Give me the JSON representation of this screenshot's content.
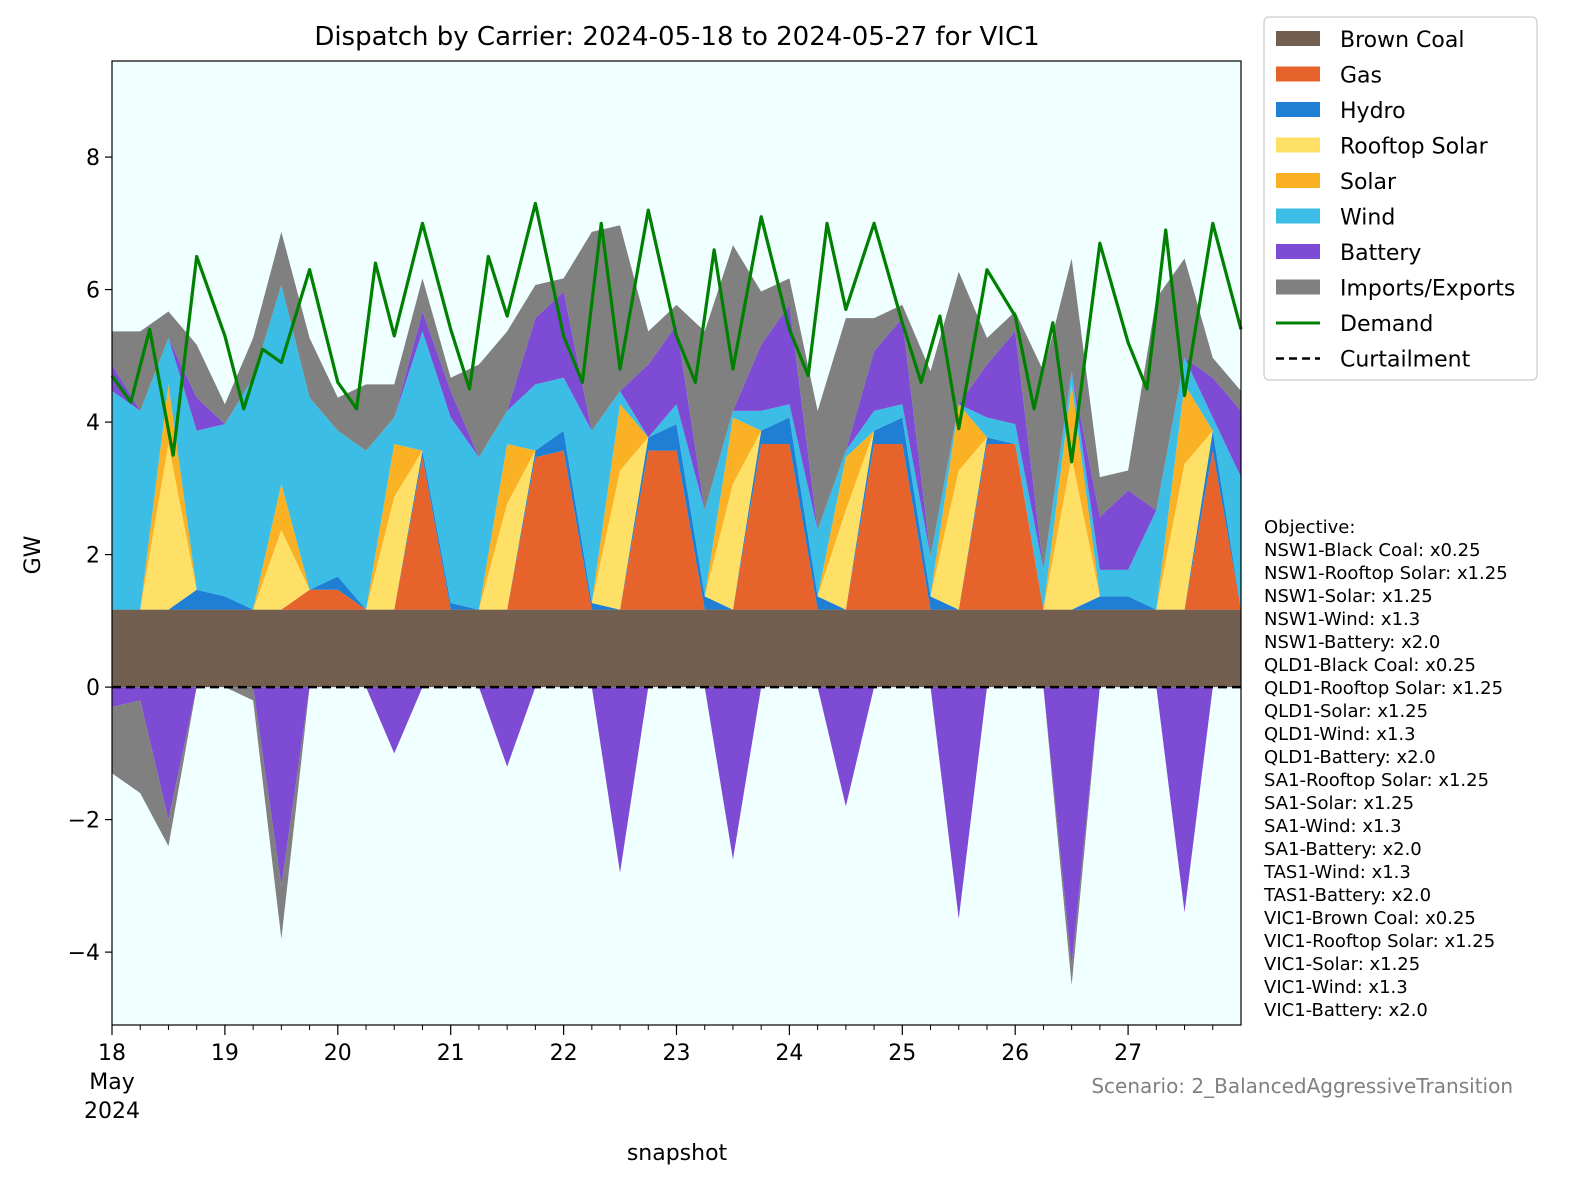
{
  "chart_data": {
    "type": "area",
    "title": "Dispatch by Carrier: 2024-05-18 to 2024-05-27 for VIC1",
    "xlabel": "snapshot",
    "ylabel": "GW",
    "ylim": [
      -5.1,
      9.45
    ],
    "xlim": [
      "2024-05-18 00:00",
      "2024-05-28 00:00"
    ],
    "x_ticks": [
      {
        "date": "2024-05-18",
        "label": "18",
        "label2": "May",
        "label3": "2024"
      },
      {
        "date": "2024-05-19",
        "label": "19"
      },
      {
        "date": "2024-05-20",
        "label": "20"
      },
      {
        "date": "2024-05-21",
        "label": "21"
      },
      {
        "date": "2024-05-22",
        "label": "22"
      },
      {
        "date": "2024-05-23",
        "label": "23"
      },
      {
        "date": "2024-05-24",
        "label": "24"
      },
      {
        "date": "2024-05-25",
        "label": "25"
      },
      {
        "date": "2024-05-26",
        "label": "26"
      },
      {
        "date": "2024-05-27",
        "label": "27"
      }
    ],
    "y_ticks": [
      {
        "value": -4,
        "label": "−4"
      },
      {
        "value": -2,
        "label": "−2"
      },
      {
        "value": 0,
        "label": "0"
      },
      {
        "value": 2,
        "label": "2"
      },
      {
        "value": 4,
        "label": "4"
      },
      {
        "value": 6,
        "label": "6"
      },
      {
        "value": 8,
        "label": "8"
      }
    ],
    "grid": false,
    "legend_position": "outside-top-right",
    "background_color": "#f0ffff",
    "x": [
      "2024-05-18 00:00",
      "2024-05-18 06:00",
      "2024-05-18 12:00",
      "2024-05-18 18:00",
      "2024-05-19 00:00",
      "2024-05-19 06:00",
      "2024-05-19 12:00",
      "2024-05-19 18:00",
      "2024-05-20 00:00",
      "2024-05-20 06:00",
      "2024-05-20 12:00",
      "2024-05-20 18:00",
      "2024-05-21 00:00",
      "2024-05-21 06:00",
      "2024-05-21 12:00",
      "2024-05-21 18:00",
      "2024-05-22 00:00",
      "2024-05-22 06:00",
      "2024-05-22 12:00",
      "2024-05-22 18:00",
      "2024-05-23 00:00",
      "2024-05-23 06:00",
      "2024-05-23 12:00",
      "2024-05-23 18:00",
      "2024-05-24 00:00",
      "2024-05-24 06:00",
      "2024-05-24 12:00",
      "2024-05-24 18:00",
      "2024-05-25 00:00",
      "2024-05-25 06:00",
      "2024-05-25 12:00",
      "2024-05-25 18:00",
      "2024-05-26 00:00",
      "2024-05-26 06:00",
      "2024-05-26 12:00",
      "2024-05-26 18:00",
      "2024-05-27 00:00",
      "2024-05-27 06:00",
      "2024-05-27 12:00",
      "2024-05-27 18:00",
      "2024-05-28 00:00"
    ],
    "series": [
      {
        "name": "Brown Coal",
        "color": "#725f4f",
        "values": [
          1.17,
          1.17,
          1.17,
          1.17,
          1.17,
          1.17,
          1.17,
          1.17,
          1.17,
          1.17,
          1.17,
          1.17,
          1.17,
          1.17,
          1.17,
          1.17,
          1.17,
          1.17,
          1.17,
          1.17,
          1.17,
          1.17,
          1.17,
          1.17,
          1.17,
          1.17,
          1.17,
          1.17,
          1.17,
          1.17,
          1.17,
          1.17,
          1.17,
          1.17,
          1.17,
          1.17,
          1.17,
          1.17,
          1.17,
          1.17,
          1.17
        ]
      },
      {
        "name": "Gas",
        "color": "#e6632b",
        "values": [
          0,
          0,
          0,
          0,
          0,
          0,
          0,
          0.3,
          0.3,
          0,
          0,
          2.3,
          0,
          0,
          0,
          2.3,
          2.4,
          0,
          0,
          2.4,
          2.4,
          0,
          0,
          2.5,
          2.5,
          0,
          0,
          2.5,
          2.5,
          0,
          0,
          2.5,
          2.5,
          0,
          0,
          0,
          0,
          0,
          0,
          2.4,
          0
        ]
      },
      {
        "name": "Hydro",
        "color": "#1f7fd4",
        "values": [
          0,
          0,
          0,
          0.3,
          0.2,
          0,
          0,
          0,
          0.2,
          0,
          0,
          0.1,
          0.1,
          0,
          0,
          0.1,
          0.3,
          0.1,
          0,
          0.2,
          0.4,
          0.2,
          0,
          0.2,
          0.4,
          0.2,
          0,
          0.2,
          0.4,
          0.2,
          0,
          0.1,
          0,
          0,
          0,
          0.2,
          0.2,
          0,
          0,
          0.3,
          0
        ]
      },
      {
        "name": "Rooftop Solar",
        "color": "#ffe066",
        "values": [
          0,
          0,
          2.5,
          0,
          0,
          0,
          1.2,
          0,
          0,
          0,
          1.7,
          0,
          0,
          0,
          1.6,
          0,
          0,
          0,
          2.1,
          0,
          0,
          0,
          1.9,
          0,
          0,
          0,
          1.5,
          0,
          0,
          0,
          2.1,
          0,
          0,
          0,
          2.3,
          0,
          0,
          0,
          2.2,
          0,
          0
        ]
      },
      {
        "name": "Solar",
        "color": "#fbb124",
        "values": [
          0,
          0,
          0.9,
          0,
          0,
          0,
          0.7,
          0,
          0,
          0,
          0.8,
          0,
          0,
          0,
          0.9,
          0,
          0,
          0,
          1.0,
          0,
          0,
          0,
          1.0,
          0,
          0,
          0,
          0.8,
          0,
          0,
          0,
          1.0,
          0,
          0,
          0,
          1.1,
          0,
          0,
          0,
          1.2,
          0,
          0
        ]
      },
      {
        "name": "Wind",
        "color": "#3bbde6",
        "values": [
          3.3,
          3.0,
          0.7,
          2.4,
          2.6,
          3.5,
          3.0,
          2.9,
          2.2,
          2.4,
          0.4,
          1.8,
          2.8,
          2.3,
          0.5,
          1.0,
          0.8,
          2.6,
          0.2,
          0,
          0.3,
          1.3,
          0.1,
          0.3,
          0.2,
          1.0,
          0.1,
          0.3,
          0.2,
          0.6,
          0,
          0.3,
          0.3,
          0.6,
          0.2,
          0.4,
          0.4,
          1.5,
          0.4,
          0.2,
          2.0
        ]
      },
      {
        "name": "Battery",
        "color": "#7e4bd4",
        "values": [
          0.4,
          0,
          0,
          0.5,
          0,
          0,
          0,
          0,
          0,
          0,
          0,
          0.3,
          0.4,
          0,
          0,
          1.0,
          1.3,
          0,
          0,
          1.1,
          1.2,
          0,
          0,
          1.0,
          1.5,
          0,
          0,
          0.9,
          1.3,
          0,
          0,
          0.8,
          1.4,
          0,
          0,
          0.8,
          1.2,
          0,
          0,
          0.6,
          1.0
        ]
      },
      {
        "name": "Imports/Exports",
        "color": "#808080",
        "values": [
          0.5,
          1.2,
          0.4,
          0.8,
          0.3,
          0.6,
          0.8,
          0.9,
          0.5,
          1.0,
          0.5,
          0.5,
          0.2,
          1.4,
          1.2,
          0.5,
          0.2,
          3.0,
          2.5,
          0.5,
          0.3,
          2.7,
          2.5,
          0.8,
          0.4,
          1.8,
          2.0,
          0.5,
          0.2,
          2.8,
          2.0,
          0.4,
          0.3,
          3.0,
          1.7,
          0.6,
          0.3,
          3.2,
          1.5,
          0.3,
          0.3
        ]
      },
      {
        "name": "Battery",
        "color": "#7e4bd4",
        "values": [
          -0.3,
          -0.2,
          -2.0,
          0,
          0,
          0,
          -3.0,
          0,
          0,
          0,
          -1.0,
          0,
          0,
          0,
          -1.2,
          0,
          0,
          0,
          -2.8,
          0,
          0,
          0,
          -2.6,
          0,
          0,
          0,
          -1.8,
          0,
          0,
          0,
          -3.5,
          0,
          0,
          0,
          -4.2,
          0,
          0,
          0,
          -3.4,
          0,
          0
        ]
      },
      {
        "name": "Imports/Exports",
        "color": "#808080",
        "values": [
          -1.0,
          -1.4,
          -0.4,
          0,
          0,
          -0.2,
          -0.8,
          0,
          0,
          0,
          0,
          0,
          0,
          0,
          0,
          0,
          0,
          0,
          0,
          0,
          0,
          0,
          0,
          0,
          0,
          0,
          0,
          0,
          0,
          0,
          0,
          0,
          0,
          0,
          -0.3,
          0,
          0,
          0,
          0,
          0,
          0
        ]
      }
    ],
    "demand": {
      "name": "Demand",
      "color": "#008000",
      "x": [
        "2024-05-18 00:00",
        "2024-05-18 04:00",
        "2024-05-18 08:00",
        "2024-05-18 13:00",
        "2024-05-18 18:00",
        "2024-05-19 00:00",
        "2024-05-19 04:00",
        "2024-05-19 08:00",
        "2024-05-19 12:00",
        "2024-05-19 18:00",
        "2024-05-20 00:00",
        "2024-05-20 04:00",
        "2024-05-20 08:00",
        "2024-05-20 12:00",
        "2024-05-20 18:00",
        "2024-05-21 00:00",
        "2024-05-21 04:00",
        "2024-05-21 08:00",
        "2024-05-21 12:00",
        "2024-05-21 18:00",
        "2024-05-22 00:00",
        "2024-05-22 04:00",
        "2024-05-22 08:00",
        "2024-05-22 12:00",
        "2024-05-22 18:00",
        "2024-05-23 00:00",
        "2024-05-23 04:00",
        "2024-05-23 08:00",
        "2024-05-23 12:00",
        "2024-05-23 18:00",
        "2024-05-24 00:00",
        "2024-05-24 04:00",
        "2024-05-24 08:00",
        "2024-05-24 12:00",
        "2024-05-24 18:00",
        "2024-05-25 00:00",
        "2024-05-25 04:00",
        "2024-05-25 08:00",
        "2024-05-25 12:00",
        "2024-05-25 18:00",
        "2024-05-26 00:00",
        "2024-05-26 04:00",
        "2024-05-26 08:00",
        "2024-05-26 12:00",
        "2024-05-26 18:00",
        "2024-05-27 00:00",
        "2024-05-27 04:00",
        "2024-05-27 08:00",
        "2024-05-27 12:00",
        "2024-05-27 18:00",
        "2024-05-28 00:00"
      ],
      "values": [
        4.7,
        4.3,
        5.4,
        3.5,
        6.5,
        5.3,
        4.2,
        5.1,
        4.9,
        6.3,
        4.6,
        4.2,
        6.4,
        5.3,
        7.0,
        5.4,
        4.5,
        6.5,
        5.6,
        7.3,
        5.3,
        4.6,
        7.0,
        4.8,
        7.2,
        5.3,
        4.6,
        6.6,
        4.8,
        7.1,
        5.4,
        4.7,
        7.0,
        5.7,
        7.0,
        5.5,
        4.6,
        5.6,
        3.9,
        6.3,
        5.6,
        4.2,
        5.5,
        3.4,
        6.7,
        5.2,
        4.5,
        6.9,
        4.4,
        7.0,
        5.4
      ]
    },
    "curtailment": {
      "name": "Curtailment",
      "color": "#000000",
      "value": 0
    }
  },
  "legend": [
    {
      "label": "Brown Coal",
      "color": "#725f4f",
      "kind": "patch"
    },
    {
      "label": "Gas",
      "color": "#e6632b",
      "kind": "patch"
    },
    {
      "label": "Hydro",
      "color": "#1f7fd4",
      "kind": "patch"
    },
    {
      "label": "Rooftop Solar",
      "color": "#ffe066",
      "kind": "patch"
    },
    {
      "label": "Solar",
      "color": "#fbb124",
      "kind": "patch"
    },
    {
      "label": "Wind",
      "color": "#3bbde6",
      "kind": "patch"
    },
    {
      "label": "Battery",
      "color": "#7e4bd4",
      "kind": "patch"
    },
    {
      "label": "Imports/Exports",
      "color": "#808080",
      "kind": "patch"
    },
    {
      "label": "Demand",
      "color": "#008000",
      "kind": "line"
    },
    {
      "label": "Curtailment",
      "color": "#000000",
      "kind": "dashed"
    }
  ],
  "objective": {
    "heading": "Objective:",
    "lines": [
      "NSW1-Black Coal: x0.25",
      "NSW1-Rooftop Solar: x1.25",
      "NSW1-Solar: x1.25",
      "NSW1-Wind: x1.3",
      "NSW1-Battery: x2.0",
      "QLD1-Black Coal: x0.25",
      "QLD1-Rooftop Solar: x1.25",
      "QLD1-Solar: x1.25",
      "QLD1-Wind: x1.3",
      "QLD1-Battery: x2.0",
      "SA1-Rooftop Solar: x1.25",
      "SA1-Solar: x1.25",
      "SA1-Wind: x1.3",
      "SA1-Battery: x2.0",
      "TAS1-Wind: x1.3",
      "TAS1-Battery: x2.0",
      "VIC1-Brown Coal: x0.25",
      "VIC1-Rooftop Solar: x1.25",
      "VIC1-Solar: x1.25",
      "VIC1-Wind: x1.3",
      "VIC1-Battery: x2.0"
    ]
  },
  "scenario": "Scenario: 2_BalancedAggressiveTransition"
}
